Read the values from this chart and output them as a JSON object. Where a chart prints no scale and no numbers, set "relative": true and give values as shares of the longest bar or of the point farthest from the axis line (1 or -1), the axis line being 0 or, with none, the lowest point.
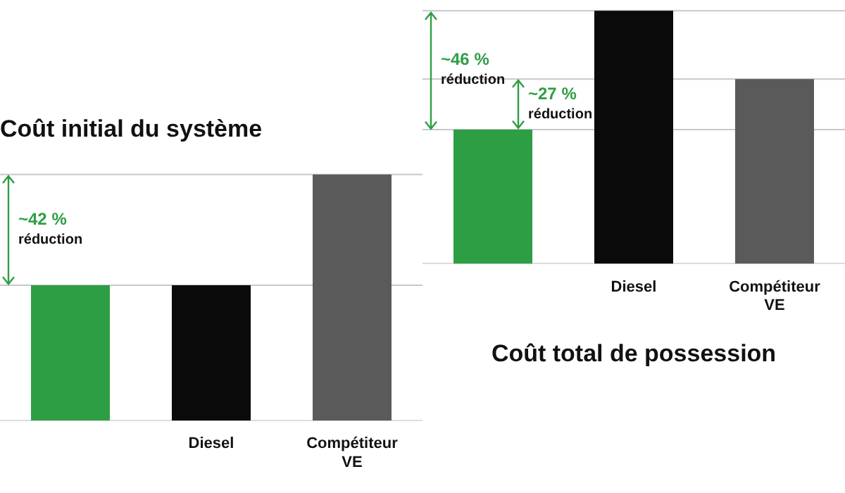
{
  "chart_data": [
    {
      "type": "bar",
      "title": "Coût initial du système",
      "relative": true,
      "categories": [
        null,
        "Diesel",
        "Compétiteur VE"
      ],
      "values": [
        0.55,
        0.55,
        1
      ],
      "colors": [
        "#2e9e44",
        "#0a0a0a",
        "#5a5a5a"
      ],
      "ref_lines": [
        {
          "axis": "y",
          "value": 1
        },
        {
          "axis": "y",
          "value": 0.55
        }
      ],
      "annotations": [
        "~42 %\nréduction"
      ]
    },
    {
      "type": "bar",
      "title": "Coût total de possession",
      "relative": true,
      "categories": [
        null,
        "Diesel",
        "Compétiteur VE"
      ],
      "values": [
        0.53,
        1,
        0.73
      ],
      "colors": [
        "#2e9e44",
        "#0a0a0a",
        "#5a5a5a"
      ],
      "ref_lines": [
        {
          "axis": "y",
          "value": 1
        },
        {
          "axis": "y",
          "value": 0.73
        },
        {
          "axis": "y",
          "value": 0.53
        }
      ],
      "annotations": [
        "~46 %\nréduction",
        "~27 %\nréduction"
      ]
    }
  ]
}
